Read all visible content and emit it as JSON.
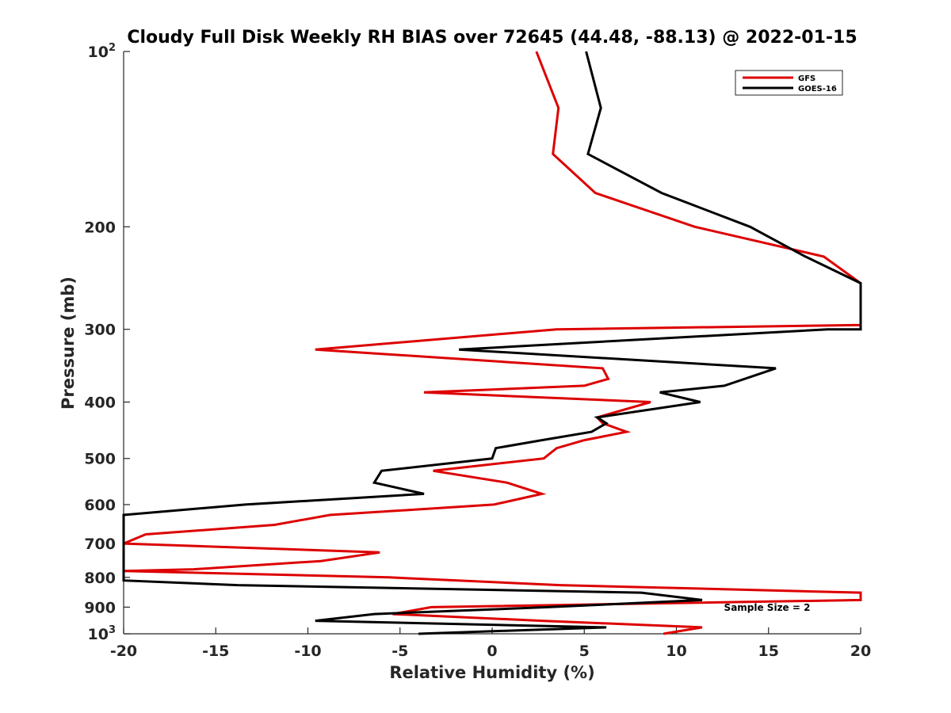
{
  "chart_data": {
    "type": "line",
    "title": "Cloudy Full Disk Weekly RH BIAS over 72645 (44.48, -88.13) @ 2022-01-15",
    "xlabel": "Relative Humidity (%)",
    "ylabel": "Pressure (mb)",
    "xlim": [
      -20,
      20
    ],
    "ylim": [
      100,
      1000
    ],
    "y_scale": "log",
    "y_reversed": true,
    "grid": false,
    "legend_position": "top-right",
    "x_ticks": [
      "-20",
      "-15",
      "-10",
      "-5",
      "0",
      "5",
      "10",
      "15",
      "20"
    ],
    "y_ticks": [
      {
        "base": "10",
        "exp": "2"
      },
      {
        "base": "200",
        "exp": ""
      },
      {
        "base": "300",
        "exp": ""
      },
      {
        "base": "400",
        "exp": ""
      },
      {
        "base": "500",
        "exp": ""
      },
      {
        "base": "600",
        "exp": ""
      },
      {
        "base": "700",
        "exp": ""
      },
      {
        "base": "800",
        "exp": ""
      },
      {
        "base": "900",
        "exp": ""
      },
      {
        "base": "10",
        "exp": "3"
      }
    ],
    "annotation": "Sample Size = 2",
    "series": [
      {
        "name": "GFS",
        "color": "#dd0000",
        "points": [
          [
            2.4,
            100
          ],
          [
            3.6,
            125
          ],
          [
            3.3,
            150
          ],
          [
            5.6,
            175
          ],
          [
            11.0,
            200
          ],
          [
            18.0,
            225
          ],
          [
            20.0,
            250
          ],
          [
            20.0,
            295
          ],
          [
            3.5,
            300
          ],
          [
            -9.6,
            325
          ],
          [
            6.0,
            350
          ],
          [
            6.3,
            365
          ],
          [
            5.0,
            375
          ],
          [
            -3.7,
            385
          ],
          [
            8.6,
            400
          ],
          [
            5.7,
            425
          ],
          [
            6.0,
            435
          ],
          [
            7.3,
            450
          ],
          [
            5.0,
            465
          ],
          [
            3.5,
            480
          ],
          [
            2.8,
            500
          ],
          [
            -3.2,
            525
          ],
          [
            0.8,
            550
          ],
          [
            2.7,
            575
          ],
          [
            0.1,
            600
          ],
          [
            -8.8,
            625
          ],
          [
            -11.8,
            650
          ],
          [
            -18.8,
            675
          ],
          [
            -20.0,
            700
          ],
          [
            -6.1,
            725
          ],
          [
            -9.3,
            750
          ],
          [
            -16.2,
            775
          ],
          [
            -20.0,
            780
          ],
          [
            -5.6,
            800
          ],
          [
            3.7,
            825
          ],
          [
            20.0,
            850
          ],
          [
            20.0,
            875
          ],
          [
            -3.3,
            900
          ],
          [
            -5.4,
            925
          ],
          [
            2.7,
            950
          ],
          [
            11.4,
            975
          ],
          [
            9.3,
            1000
          ]
        ]
      },
      {
        "name": "GOES-16",
        "color": "#000000",
        "points": [
          [
            5.1,
            100
          ],
          [
            5.9,
            125
          ],
          [
            5.2,
            150
          ],
          [
            9.2,
            175
          ],
          [
            14.0,
            200
          ],
          [
            17.0,
            225
          ],
          [
            20.0,
            250
          ],
          [
            20.0,
            300
          ],
          [
            18.2,
            300
          ],
          [
            -1.8,
            325
          ],
          [
            15.4,
            350
          ],
          [
            12.6,
            375
          ],
          [
            9.1,
            385
          ],
          [
            11.3,
            400
          ],
          [
            5.7,
            425
          ],
          [
            6.2,
            435
          ],
          [
            5.4,
            450
          ],
          [
            2.7,
            465
          ],
          [
            0.2,
            480
          ],
          [
            0.0,
            500
          ],
          [
            -6.0,
            525
          ],
          [
            -6.4,
            550
          ],
          [
            -3.7,
            575
          ],
          [
            -13.4,
            600
          ],
          [
            -20.0,
            625
          ],
          [
            -20.0,
            800
          ],
          [
            -20.0,
            810
          ],
          [
            -13.8,
            825
          ],
          [
            8.1,
            850
          ],
          [
            11.4,
            875
          ],
          [
            3.0,
            900
          ],
          [
            -6.4,
            925
          ],
          [
            -9.6,
            950
          ],
          [
            6.2,
            975
          ],
          [
            -4.0,
            1000
          ]
        ]
      }
    ]
  }
}
